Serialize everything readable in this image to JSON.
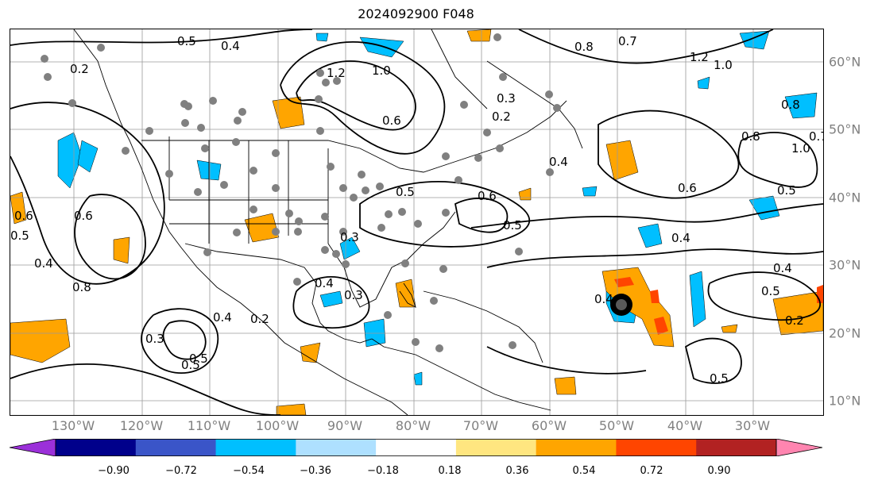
{
  "title": "2024092900 F048",
  "axes": {
    "lon_labels": [
      "130°W",
      "120°W",
      "110°W",
      "100°W",
      "90°W",
      "80°W",
      "70°W",
      "60°W",
      "50°W",
      "40°W",
      "30°W"
    ],
    "lat_labels": [
      "60°N",
      "50°N",
      "40°N",
      "30°N",
      "20°N",
      "10°N"
    ]
  },
  "contour_labels": [
    {
      "text": "0.5"
    },
    {
      "text": "0.4"
    },
    {
      "text": "1.2"
    },
    {
      "text": "1.0"
    },
    {
      "text": "0.8"
    },
    {
      "text": "0.7"
    },
    {
      "text": "0.6"
    },
    {
      "text": "0.3"
    },
    {
      "text": "0.2"
    },
    {
      "text": "0.5"
    },
    {
      "text": "0.6"
    },
    {
      "text": "0.4"
    },
    {
      "text": "0.5"
    },
    {
      "text": "0.3"
    },
    {
      "text": "0.4"
    },
    {
      "text": "0.6"
    },
    {
      "text": "0.8"
    },
    {
      "text": "0.4"
    },
    {
      "text": "0.3"
    },
    {
      "text": "0.5"
    },
    {
      "text": "0.2"
    },
    {
      "text": "0.4"
    },
    {
      "text": "0.5"
    },
    {
      "text": "0.8"
    },
    {
      "text": "1.0"
    },
    {
      "text": "0.6"
    },
    {
      "text": "0.5"
    },
    {
      "text": "0.4"
    },
    {
      "text": "0.4"
    },
    {
      "text": "0.5"
    },
    {
      "text": "0.2"
    },
    {
      "text": "0.3"
    },
    {
      "text": "0.4"
    },
    {
      "text": "0.8"
    },
    {
      "text": "0.7"
    },
    {
      "text": "1.0"
    },
    {
      "text": "1.2"
    },
    {
      "text": "0.5"
    },
    {
      "text": "0.2"
    },
    {
      "text": "0.6"
    },
    {
      "text": "0.5"
    }
  ],
  "colorbar": {
    "ticks": [
      "−0.90",
      "−0.72",
      "−0.54",
      "−0.36",
      "−0.18",
      "0.18",
      "0.36",
      "0.54",
      "0.72",
      "0.90"
    ],
    "colors": [
      "#9b30d9",
      "#00008b",
      "#3a55c8",
      "#00bfff",
      "#aee0ff",
      "#ffffff",
      "#ffe680",
      "#ffa500",
      "#ff4500",
      "#b22222",
      "#ff85b0"
    ]
  }
}
